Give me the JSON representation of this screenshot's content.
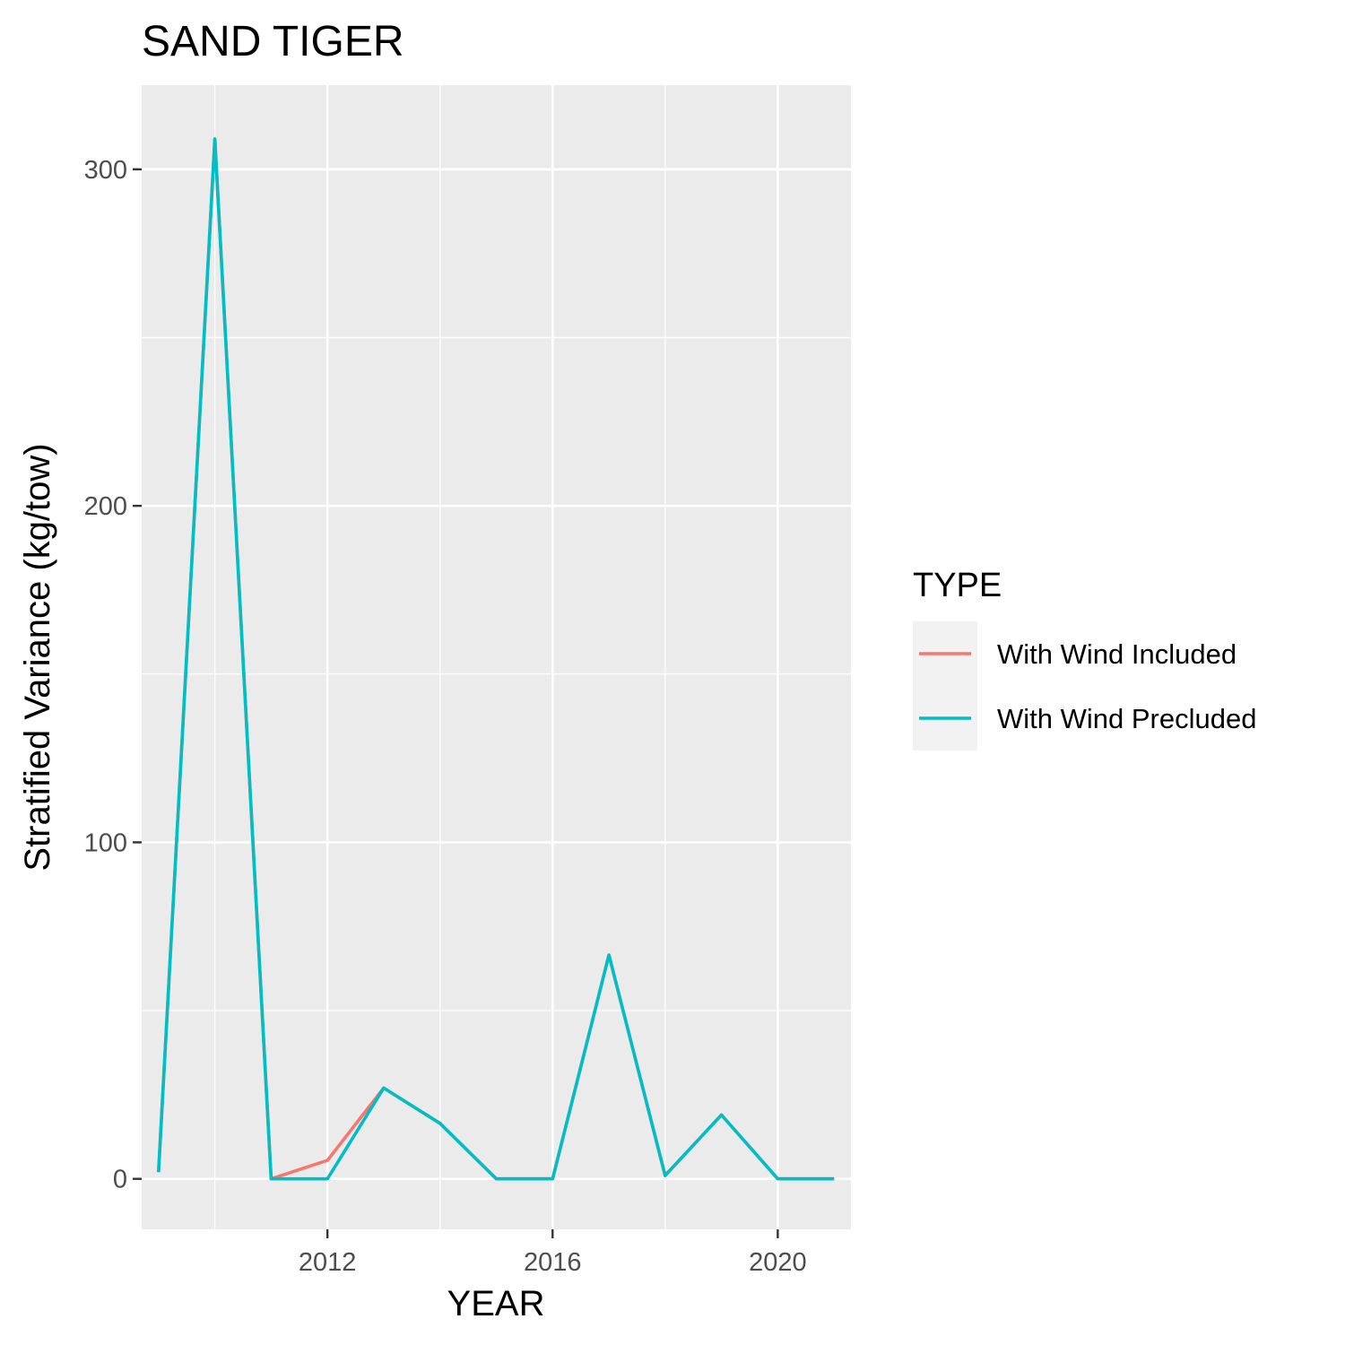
{
  "chart_data": {
    "type": "line",
    "title": "SAND TIGER",
    "xlabel": "YEAR",
    "ylabel": "Stratified Variance (kg/tow)",
    "xlim": [
      2008.7,
      2021.3
    ],
    "ylim": [
      -15,
      325
    ],
    "x_ticks": [
      2012,
      2016,
      2020
    ],
    "y_ticks": [
      0,
      100,
      200,
      300
    ],
    "grid": true,
    "legend": {
      "title": "TYPE",
      "position": "right"
    },
    "x": [
      2009,
      2010,
      2011,
      2012,
      2013,
      2014,
      2015,
      2016,
      2017,
      2018,
      2019,
      2020,
      2021
    ],
    "series": [
      {
        "name": "With Wind Included",
        "color": "#F8766D",
        "values": [
          2,
          309,
          0,
          5.5,
          27,
          16.5,
          0,
          0,
          66.5,
          1,
          19,
          0,
          0
        ]
      },
      {
        "name": "With Wind Precluded",
        "color": "#00BFC4",
        "values": [
          2,
          309,
          0,
          0,
          27,
          16.5,
          0,
          0,
          66.5,
          1,
          19,
          0,
          0
        ]
      }
    ]
  }
}
